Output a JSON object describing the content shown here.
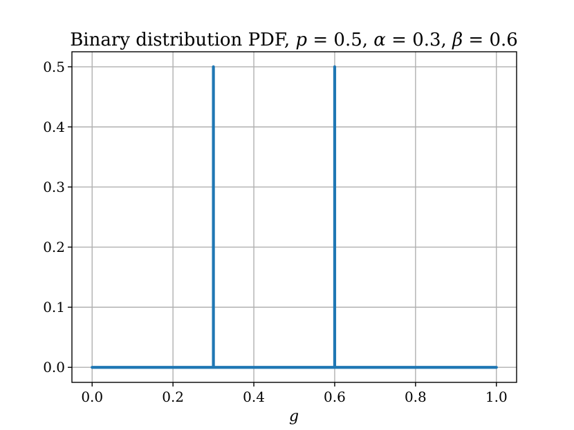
{
  "chart_data": {
    "type": "line",
    "title": "Binary distribution PDF, p = 0.5, α = 0.3, β = 0.6",
    "title_parts": {
      "prefix": "Binary distribution PDF, ",
      "p_symbol": "p",
      "p_value": "0.5",
      "alpha_symbol": "α",
      "alpha_value": "0.3",
      "beta_symbol": "β",
      "beta_value": "0.6",
      "equals": " = ",
      "separator": ", "
    },
    "xlabel": "g",
    "ylabel": "",
    "xlim": [
      -0.05,
      1.05
    ],
    "ylim": [
      -0.025,
      0.525
    ],
    "xticks": [
      0.0,
      0.2,
      0.4,
      0.6,
      0.8,
      1.0
    ],
    "xtick_labels": [
      "0.0",
      "0.2",
      "0.4",
      "0.6",
      "0.8",
      "1.0"
    ],
    "yticks": [
      0.0,
      0.1,
      0.2,
      0.3,
      0.4,
      0.5
    ],
    "ytick_labels": [
      "0.0",
      "0.1",
      "0.2",
      "0.3",
      "0.4",
      "0.5"
    ],
    "grid": true,
    "series": [
      {
        "color": "#1f77b4",
        "points": [
          [
            0.0,
            0.0
          ],
          [
            0.3,
            0.0
          ],
          [
            0.3,
            0.5
          ],
          [
            0.3,
            0.0
          ],
          [
            0.6,
            0.0
          ],
          [
            0.6,
            0.5
          ],
          [
            0.6,
            0.0
          ],
          [
            1.0,
            0.0
          ]
        ]
      }
    ]
  }
}
